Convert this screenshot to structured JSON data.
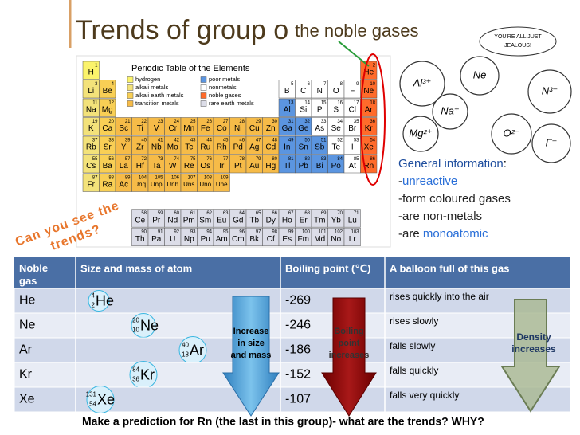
{
  "header": {
    "title": "Trends of group o",
    "subtitle": "the noble gases"
  },
  "periodic_table": {
    "title": "Periodic Table of the Elements",
    "legend": [
      "hydrogen",
      "alkali metals",
      "alkali earth metals",
      "transition metals",
      "poor metals",
      "nonmetals",
      "noble gases",
      "rare earth metals"
    ],
    "elements": [
      [
        1,
        "H"
      ],
      [
        2,
        "He"
      ],
      [
        3,
        "Li"
      ],
      [
        4,
        "Be"
      ],
      [
        5,
        "B"
      ],
      [
        6,
        "C"
      ],
      [
        7,
        "N"
      ],
      [
        8,
        "O"
      ],
      [
        9,
        "F"
      ],
      [
        10,
        "Ne"
      ],
      [
        11,
        "Na"
      ],
      [
        12,
        "Mg"
      ],
      [
        13,
        "Al"
      ],
      [
        14,
        "Si"
      ],
      [
        15,
        "P"
      ],
      [
        16,
        "S"
      ],
      [
        17,
        "Cl"
      ],
      [
        18,
        "Ar"
      ],
      [
        19,
        "K"
      ],
      [
        20,
        "Ca"
      ],
      [
        21,
        "Sc"
      ],
      [
        22,
        "Ti"
      ],
      [
        23,
        "V"
      ],
      [
        24,
        "Cr"
      ],
      [
        25,
        "Mn"
      ],
      [
        26,
        "Fe"
      ],
      [
        27,
        "Co"
      ],
      [
        28,
        "Ni"
      ],
      [
        29,
        "Cu"
      ],
      [
        30,
        "Zn"
      ],
      [
        31,
        "Ga"
      ],
      [
        32,
        "Ge"
      ],
      [
        33,
        "As"
      ],
      [
        34,
        "Se"
      ],
      [
        35,
        "Br"
      ],
      [
        36,
        "Kr"
      ],
      [
        37,
        "Rb"
      ],
      [
        38,
        "Sr"
      ],
      [
        39,
        "Y"
      ],
      [
        40,
        "Zr"
      ],
      [
        41,
        "Nb"
      ],
      [
        42,
        "Mo"
      ],
      [
        43,
        "Tc"
      ],
      [
        44,
        "Ru"
      ],
      [
        45,
        "Rh"
      ],
      [
        46,
        "Pd"
      ],
      [
        47,
        "Ag"
      ],
      [
        48,
        "Cd"
      ],
      [
        49,
        "In"
      ],
      [
        50,
        "Sn"
      ],
      [
        51,
        "Sb"
      ],
      [
        52,
        "Te"
      ],
      [
        53,
        "I"
      ],
      [
        54,
        "Xe"
      ],
      [
        55,
        "Cs"
      ],
      [
        56,
        "Ba"
      ],
      [
        57,
        "La"
      ],
      [
        58,
        "Ce"
      ],
      [
        59,
        "Pr"
      ],
      [
        60,
        "Nd"
      ],
      [
        61,
        "Pm"
      ],
      [
        62,
        "Sm"
      ],
      [
        63,
        "Eu"
      ],
      [
        64,
        "Gd"
      ],
      [
        65,
        "Tb"
      ],
      [
        66,
        "Dy"
      ],
      [
        67,
        "Ho"
      ],
      [
        68,
        "Er"
      ],
      [
        69,
        "Tm"
      ],
      [
        70,
        "Yb"
      ],
      [
        71,
        "Lu"
      ],
      [
        72,
        "Hf"
      ],
      [
        73,
        "Ta"
      ],
      [
        74,
        "W"
      ],
      [
        75,
        "Re"
      ],
      [
        76,
        "Os"
      ],
      [
        77,
        "Ir"
      ],
      [
        78,
        "Pt"
      ],
      [
        79,
        "Au"
      ],
      [
        80,
        "Hg"
      ],
      [
        81,
        "Tl"
      ],
      [
        82,
        "Pb"
      ],
      [
        83,
        "Bi"
      ],
      [
        84,
        "Po"
      ],
      [
        85,
        "At"
      ],
      [
        86,
        "Rn"
      ],
      [
        87,
        "Fr"
      ],
      [
        88,
        "Ra"
      ],
      [
        89,
        "Ac"
      ],
      [
        90,
        "Th"
      ],
      [
        91,
        "Pa"
      ],
      [
        92,
        "U"
      ],
      [
        93,
        "Np"
      ],
      [
        94,
        "Pu"
      ],
      [
        95,
        "Am"
      ],
      [
        96,
        "Cm"
      ],
      [
        97,
        "Bk"
      ],
      [
        98,
        "Cf"
      ],
      [
        99,
        "Es"
      ],
      [
        100,
        "Fm"
      ],
      [
        101,
        "Md"
      ],
      [
        102,
        "No"
      ],
      [
        103,
        "Lr"
      ],
      [
        104,
        "Unq"
      ],
      [
        105,
        "Unp"
      ],
      [
        106,
        "Unh"
      ],
      [
        107,
        "Uns"
      ],
      [
        108,
        "Uno"
      ],
      [
        109,
        "Une"
      ]
    ]
  },
  "cartoon": {
    "speech": [
      "YOU'RE ALL JUST",
      "JEALOUS!"
    ],
    "ions": [
      "Al³⁺",
      "Ne",
      "Na⁺",
      "Mg²⁺",
      "N³⁻",
      "O²⁻",
      "F⁻"
    ]
  },
  "info": {
    "heading": [
      "General information",
      ":"
    ],
    "items": [
      [
        "-",
        "unreactive"
      ],
      [
        "-form coloured gases"
      ],
      [
        "-are non-metals"
      ],
      [
        "-are ",
        "monoatomic"
      ]
    ]
  },
  "callout": [
    "Can you see the",
    "trends?"
  ],
  "table": {
    "headers": [
      "Noble gas",
      "Size and mass of atom",
      "Boiling point (℃)",
      "A balloon full of this gas"
    ],
    "rows": [
      {
        "gas": "He",
        "symbol": "He",
        "mass_number": 4,
        "atomic_number": 2,
        "boiling_point": -269,
        "balloon": "rises quickly into the air"
      },
      {
        "gas": "Ne",
        "symbol": "Ne",
        "mass_number": 20,
        "atomic_number": 10,
        "boiling_point": -246,
        "balloon": "rises slowly"
      },
      {
        "gas": "Ar",
        "symbol": "Ar",
        "mass_number": 40,
        "atomic_number": 18,
        "boiling_point": -186,
        "balloon": "falls slowly"
      },
      {
        "gas": "Kr",
        "symbol": "Kr",
        "mass_number": 84,
        "atomic_number": 36,
        "boiling_point": -152,
        "balloon": "falls quickly"
      },
      {
        "gas": "Xe",
        "symbol": "Xe",
        "mass_number": 131,
        "atomic_number": 54,
        "boiling_point": -107,
        "balloon": "falls very quickly"
      }
    ]
  },
  "arrows": [
    [
      "Increase",
      "in size",
      "and mass"
    ],
    [
      "Boiling",
      "point",
      "increases"
    ],
    [
      "Density",
      "increases"
    ]
  ],
  "footer": "Make a prediction for Rn (the last in this group)- what are the trends? WHY?"
}
